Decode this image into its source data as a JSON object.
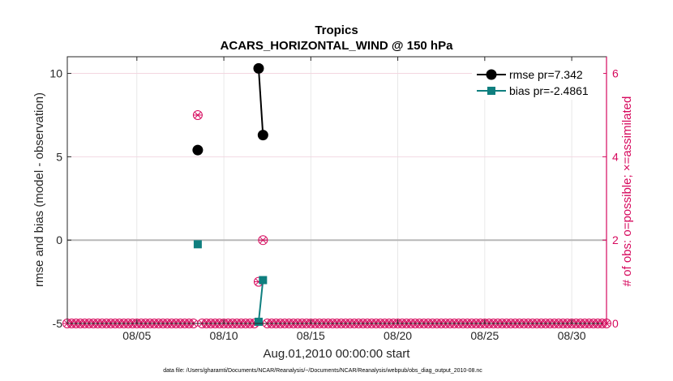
{
  "chart_data": {
    "type": "line",
    "title": "Tropics",
    "subtitle": "ACARS_HORIZONTAL_WIND @ 150 hPa",
    "xlabel": "Aug.01,2010 00:00:00 start",
    "ylabel": "rmse and bias (model - observation)",
    "y2label": "# of obs: o=possible; ×=assimilated",
    "xlim": [
      1,
      32
    ],
    "ylim": [
      -5,
      11
    ],
    "y2lim": [
      0,
      6.4
    ],
    "x_tick_values": [
      5,
      10,
      15,
      20,
      25,
      30
    ],
    "x_tick_labels": [
      "08/05",
      "08/10",
      "08/15",
      "08/20",
      "08/25",
      "08/30"
    ],
    "y_tick_values": [
      -5,
      0,
      5,
      10
    ],
    "y_tick_labels": [
      "-5",
      "0",
      "5",
      "10"
    ],
    "y2_tick_values": [
      0,
      2,
      4,
      6
    ],
    "y2_tick_labels": [
      "0",
      "2",
      "4",
      "6"
    ],
    "grid": true,
    "legend_position": "top-right",
    "series": [
      {
        "name": "rmse pr=7.342",
        "axis": "left",
        "color": "#000000",
        "marker": "circle",
        "points": [
          {
            "x": 8.5,
            "y": 5.4
          },
          {
            "x": 12,
            "y": 10.3
          },
          {
            "x": 12.25,
            "y": 6.3
          }
        ]
      },
      {
        "name": "bias pr=-2.4861",
        "axis": "left",
        "color": "#0f7f7f",
        "marker": "square",
        "points": [
          {
            "x": 8.5,
            "y": -0.25
          },
          {
            "x": 12,
            "y": -4.9
          },
          {
            "x": 12.25,
            "y": -2.4
          }
        ]
      },
      {
        "axis": "right",
        "color": "#d6095d",
        "marker": "circle-star",
        "points": [
          {
            "x": 8.5,
            "y": 5
          },
          {
            "x": 12,
            "y": 1
          },
          {
            "x": 12.25,
            "y": 2
          }
        ],
        "zero_days": [
          1,
          1.25,
          1.5,
          1.75,
          2,
          2.25,
          2.5,
          2.75,
          3,
          3.25,
          3.5,
          3.75,
          4,
          4.25,
          4.5,
          4.75,
          5,
          5.25,
          5.5,
          5.75,
          6,
          6.25,
          6.5,
          6.75,
          7,
          7.25,
          7.5,
          7.75,
          8,
          8.25,
          8.75,
          9,
          9.25,
          9.5,
          9.75,
          10,
          10.25,
          10.5,
          10.75,
          11,
          11.25,
          11.5,
          11.75,
          12.5,
          12.75,
          13,
          13.25,
          13.5,
          13.75,
          14,
          14.25,
          14.5,
          14.75,
          15,
          15.25,
          15.5,
          15.75,
          16,
          16.25,
          16.5,
          16.75,
          17,
          17.25,
          17.5,
          17.75,
          18,
          18.25,
          18.5,
          18.75,
          19,
          19.25,
          19.5,
          19.75,
          20,
          20.25,
          20.5,
          20.75,
          21,
          21.25,
          21.5,
          21.75,
          22,
          22.25,
          22.5,
          22.75,
          23,
          23.25,
          23.5,
          23.75,
          24,
          24.25,
          24.5,
          24.75,
          25,
          25.25,
          25.5,
          25.75,
          26,
          26.25,
          26.5,
          26.75,
          27,
          27.25,
          27.5,
          27.75,
          28,
          28.25,
          28.5,
          28.75,
          29,
          29.25,
          29.5,
          29.75,
          30,
          30.25,
          30.5,
          30.75,
          31,
          31.25,
          31.5,
          31.75,
          32
        ]
      }
    ],
    "footnote": "data file: /Users/gharamti/Documents/NCAR/Reanalysis/~/Documents/NCAR/Reanalysis/webpub/obs_diag_output_2010-08.nc"
  }
}
